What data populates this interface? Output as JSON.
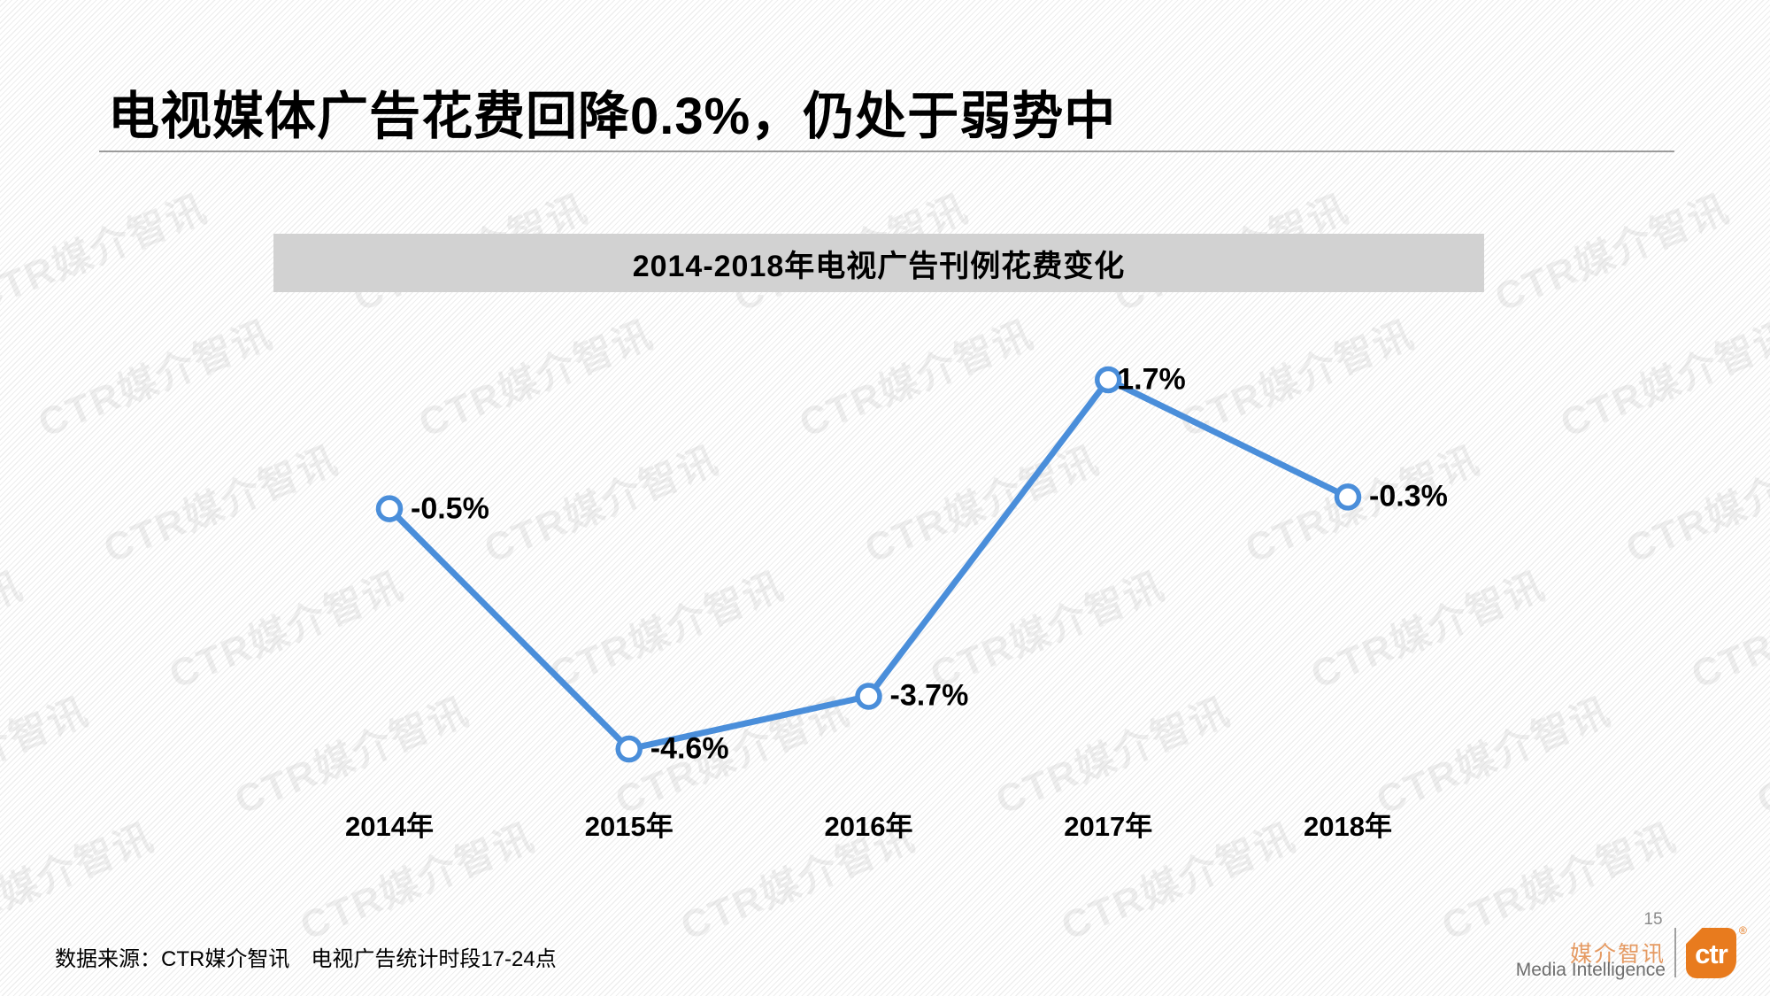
{
  "slide": {
    "title": "电视媒体广告花费回降0.3%，仍处于弱势中",
    "page_number": "15",
    "source_note": "数据来源：CTR媒介智讯　电视广告统计时段17-24点",
    "watermark_text": "CTR媒介智讯"
  },
  "chart_data": {
    "type": "line",
    "title": "2014-2018年电视广告刊例花费变化",
    "categories": [
      "2014年",
      "2015年",
      "2016年",
      "2017年",
      "2018年"
    ],
    "series": [
      {
        "name": "电视广告刊例花费变化",
        "values": [
          -0.5,
          -4.6,
          -3.7,
          1.7,
          -0.3
        ]
      }
    ],
    "point_labels": [
      "-0.5%",
      "-4.6%",
      "-3.7%",
      "1.7%",
      "-0.3%"
    ],
    "label_dx": [
      24,
      24,
      24,
      10,
      24
    ],
    "xlabel": "",
    "ylabel": "",
    "ylim": [
      -5.5,
      2.5
    ],
    "grid": false,
    "legend": "none",
    "line_color": "#4a8eda",
    "marker": "open-circle",
    "marker_fill": "#ffffff"
  },
  "logo": {
    "brand_cn": "媒介智讯",
    "brand_en": "Media Intelligence",
    "ctr_text": "ctr",
    "registered_mark": "®",
    "orange": "#e87b1e"
  }
}
